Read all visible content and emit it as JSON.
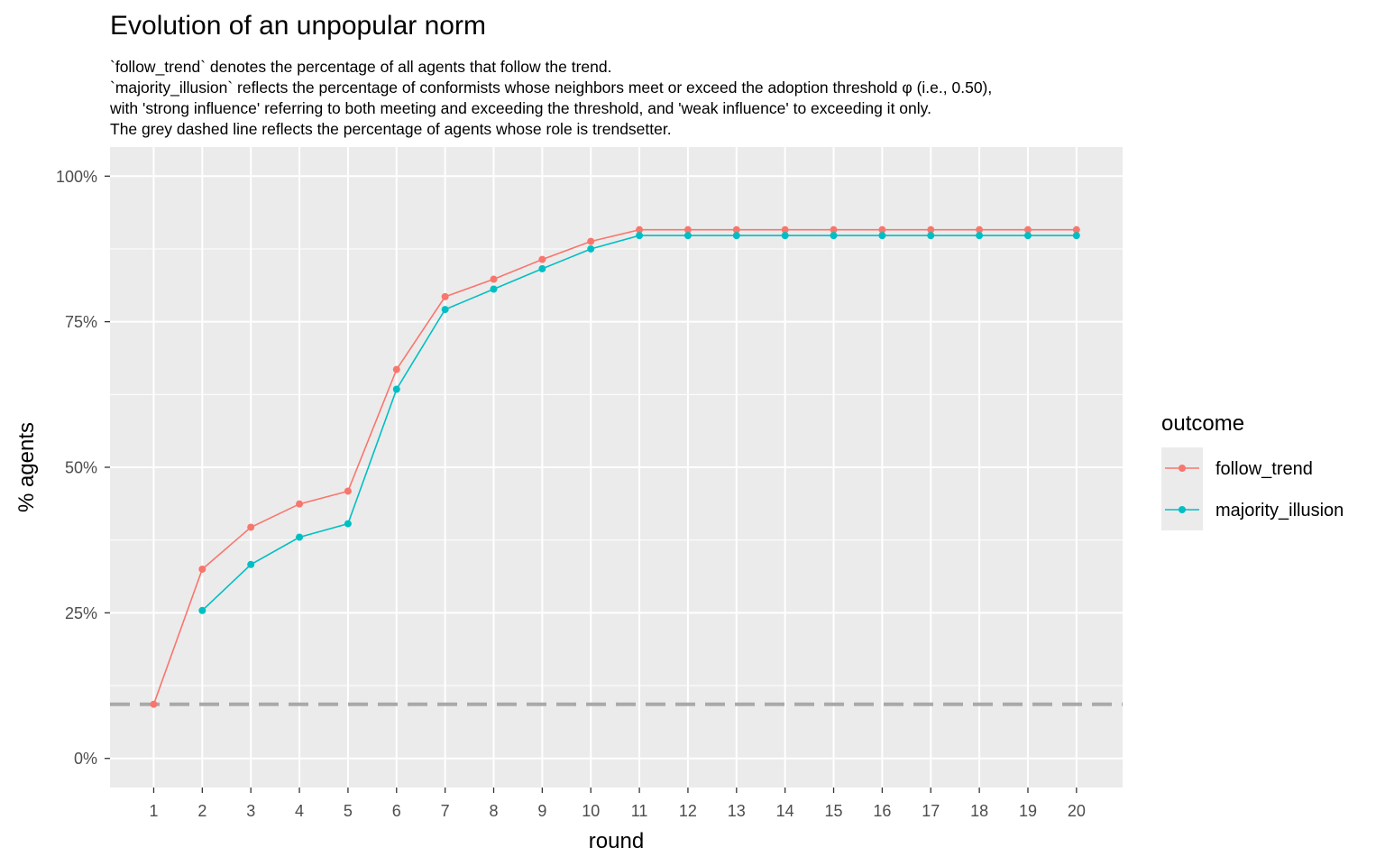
{
  "chart_data": {
    "type": "line",
    "title": "Evolution of an unpopular norm",
    "subtitle_lines": [
      "`follow_trend` denotes the percentage of all agents that follow the trend.",
      "`majority_illusion` reflects the percentage of conformists whose neighbors meet or exceed the adoption threshold φ (i.e., 0.50),",
      "with 'strong influence' referring to both meeting and exceeding the threshold, and 'weak influence' to exceeding it only.",
      "The grey dashed line reflects the percentage of agents whose role is trendsetter."
    ],
    "xlabel": "round",
    "ylabel": "% agents",
    "x": [
      1,
      2,
      3,
      4,
      5,
      6,
      7,
      8,
      9,
      10,
      11,
      12,
      13,
      14,
      15,
      16,
      17,
      18,
      19,
      20
    ],
    "ylim": [
      -0.05,
      1.05
    ],
    "ytick_values": [
      0,
      0.25,
      0.5,
      0.75,
      1.0
    ],
    "ytick_labels": [
      "0%",
      "25%",
      "50%",
      "75%",
      "100%"
    ],
    "grid": true,
    "legend": {
      "title": "outcome",
      "position": "right"
    },
    "series": [
      {
        "name": "follow_trend",
        "color": "#F8766D",
        "values": [
          0.093,
          0.325,
          0.397,
          0.437,
          0.459,
          0.668,
          0.793,
          0.823,
          0.857,
          0.888,
          0.908,
          0.908,
          0.908,
          0.908,
          0.908,
          0.908,
          0.908,
          0.908,
          0.908,
          0.908
        ]
      },
      {
        "name": "majority_illusion",
        "color": "#00BFC4",
        "values": [
          null,
          0.254,
          0.333,
          0.38,
          0.403,
          0.634,
          0.771,
          0.806,
          0.841,
          0.875,
          0.898,
          0.898,
          0.898,
          0.898,
          0.898,
          0.898,
          0.898,
          0.898,
          0.898,
          0.898
        ]
      }
    ],
    "reference_line": {
      "value": 0.093,
      "color": "#A9A9A9",
      "style": "dashed"
    },
    "panel_color": "#EBEBEB",
    "gridline_color": "#FFFFFF"
  }
}
